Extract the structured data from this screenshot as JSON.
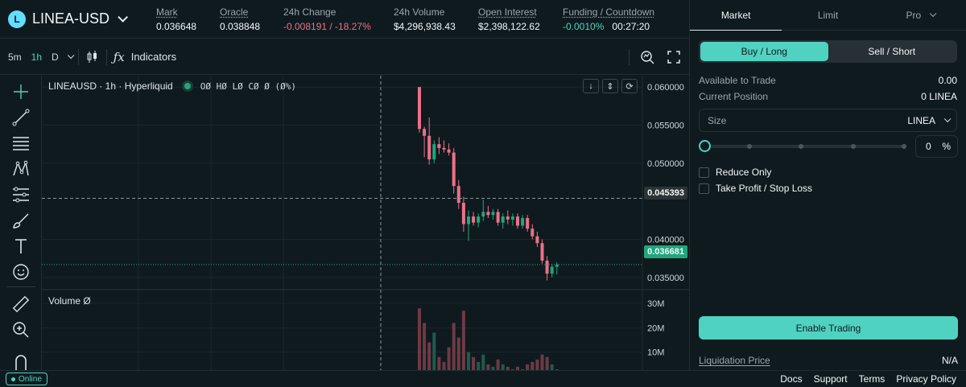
{
  "header": {
    "pair": "LINEA-USD",
    "logo_letter": "L",
    "stats": [
      {
        "label": "Mark",
        "value": "0.036648",
        "underline": true
      },
      {
        "label": "Oracle",
        "value": "0.038848",
        "underline": true
      },
      {
        "label": "24h Change",
        "value": "-0.008191 / -18.27%",
        "underline": false,
        "tone": "red"
      },
      {
        "label": "24h Volume",
        "value": "$4,296,938.43",
        "underline": false
      },
      {
        "label": "Open Interest",
        "value": "$2,398,122.62",
        "underline": true
      }
    ],
    "funding": {
      "label": "Funding / Countdown",
      "rate": "-0.0010%",
      "countdown": "00:27:20"
    }
  },
  "chart_toolbar": {
    "timeframes": [
      "5m",
      "1h",
      "D"
    ],
    "active_timeframe": "1h",
    "indicators_label": "Indicators"
  },
  "chart": {
    "legend_title": "LINEAUSD · 1h · Hyperliquid",
    "ohlc": "OØ HØ LØ CØ Ø (Ø%)",
    "volume_label": "Volume  Ø",
    "crosshair_price": "0.045393",
    "last_price": "0.036681",
    "colors": {
      "up": "#1fa67d",
      "down": "#ed7088",
      "accent": "#50d2c1"
    }
  },
  "chart_data": {
    "type": "candlestick",
    "price_ticks": [
      0.06,
      0.055,
      0.05,
      0.04,
      0.035
    ],
    "price_tick_labels": [
      "0.060000",
      "0.055000",
      "0.050000",
      "0.040000",
      "0.035000"
    ],
    "volume_ticks": [
      30,
      20,
      10
    ],
    "volume_tick_labels": [
      "30M",
      "20M",
      "10M"
    ],
    "ylim": [
      0.0335,
      0.0615
    ],
    "candles": [
      [
        0.06,
        0.06,
        0.054,
        0.0545,
        28
      ],
      [
        0.0545,
        0.0548,
        0.0508,
        0.0536,
        22
      ],
      [
        0.0536,
        0.056,
        0.0498,
        0.0505,
        14
      ],
      [
        0.0505,
        0.053,
        0.05,
        0.0525,
        18
      ],
      [
        0.0525,
        0.0534,
        0.0512,
        0.052,
        8
      ],
      [
        0.052,
        0.053,
        0.0514,
        0.0518,
        6
      ],
      [
        0.0518,
        0.0526,
        0.051,
        0.0514,
        12
      ],
      [
        0.0514,
        0.052,
        0.046,
        0.047,
        22
      ],
      [
        0.047,
        0.0478,
        0.044,
        0.0448,
        16
      ],
      [
        0.0448,
        0.0456,
        0.041,
        0.042,
        27
      ],
      [
        0.042,
        0.0438,
        0.0398,
        0.043,
        10
      ],
      [
        0.043,
        0.0436,
        0.0418,
        0.0422,
        8
      ],
      [
        0.0422,
        0.0434,
        0.0416,
        0.043,
        6
      ],
      [
        0.043,
        0.0452,
        0.0424,
        0.0436,
        9
      ],
      [
        0.0436,
        0.0444,
        0.0428,
        0.0432,
        5
      ],
      [
        0.0432,
        0.044,
        0.0426,
        0.0436,
        4
      ],
      [
        0.0436,
        0.044,
        0.0418,
        0.0422,
        7
      ],
      [
        0.0422,
        0.0434,
        0.0414,
        0.043,
        5
      ],
      [
        0.043,
        0.0438,
        0.042,
        0.0426,
        4
      ],
      [
        0.0426,
        0.0434,
        0.0418,
        0.043,
        3
      ],
      [
        0.043,
        0.0434,
        0.0414,
        0.0418,
        4
      ],
      [
        0.0418,
        0.0432,
        0.0414,
        0.0428,
        3
      ],
      [
        0.0428,
        0.0432,
        0.041,
        0.0414,
        5
      ],
      [
        0.0414,
        0.042,
        0.04,
        0.0404,
        6
      ],
      [
        0.0404,
        0.041,
        0.039,
        0.0395,
        7
      ],
      [
        0.0395,
        0.04,
        0.0368,
        0.0372,
        9
      ],
      [
        0.0372,
        0.0378,
        0.0346,
        0.0355,
        8
      ],
      [
        0.0355,
        0.0368,
        0.035,
        0.0364,
        5
      ],
      [
        0.0364,
        0.037,
        0.0354,
        0.0367,
        3
      ]
    ],
    "candle_fields": [
      "open",
      "high",
      "low",
      "close",
      "volume_millions"
    ]
  },
  "order_panel": {
    "tabs": [
      "Market",
      "Limit",
      "Pro"
    ],
    "active_tab": "Market",
    "buy_label": "Buy / Long",
    "sell_label": "Sell / Short",
    "available_label": "Available to Trade",
    "available_value": "0.00",
    "position_label": "Current Position",
    "position_value": "0 LINEA",
    "size_label": "Size",
    "size_unit": "LINEA",
    "size_percent": "0",
    "percent_sign": "%",
    "slider_value": 0,
    "reduce_only": "Reduce Only",
    "tp_sl": "Take Profit / Stop Loss",
    "enable_button": "Enable Trading",
    "liq_label": "Liquidation Price",
    "liq_value": "N/A"
  },
  "footer": {
    "status": "Online",
    "links": [
      "Docs",
      "Support",
      "Terms",
      "Privacy Policy"
    ]
  }
}
